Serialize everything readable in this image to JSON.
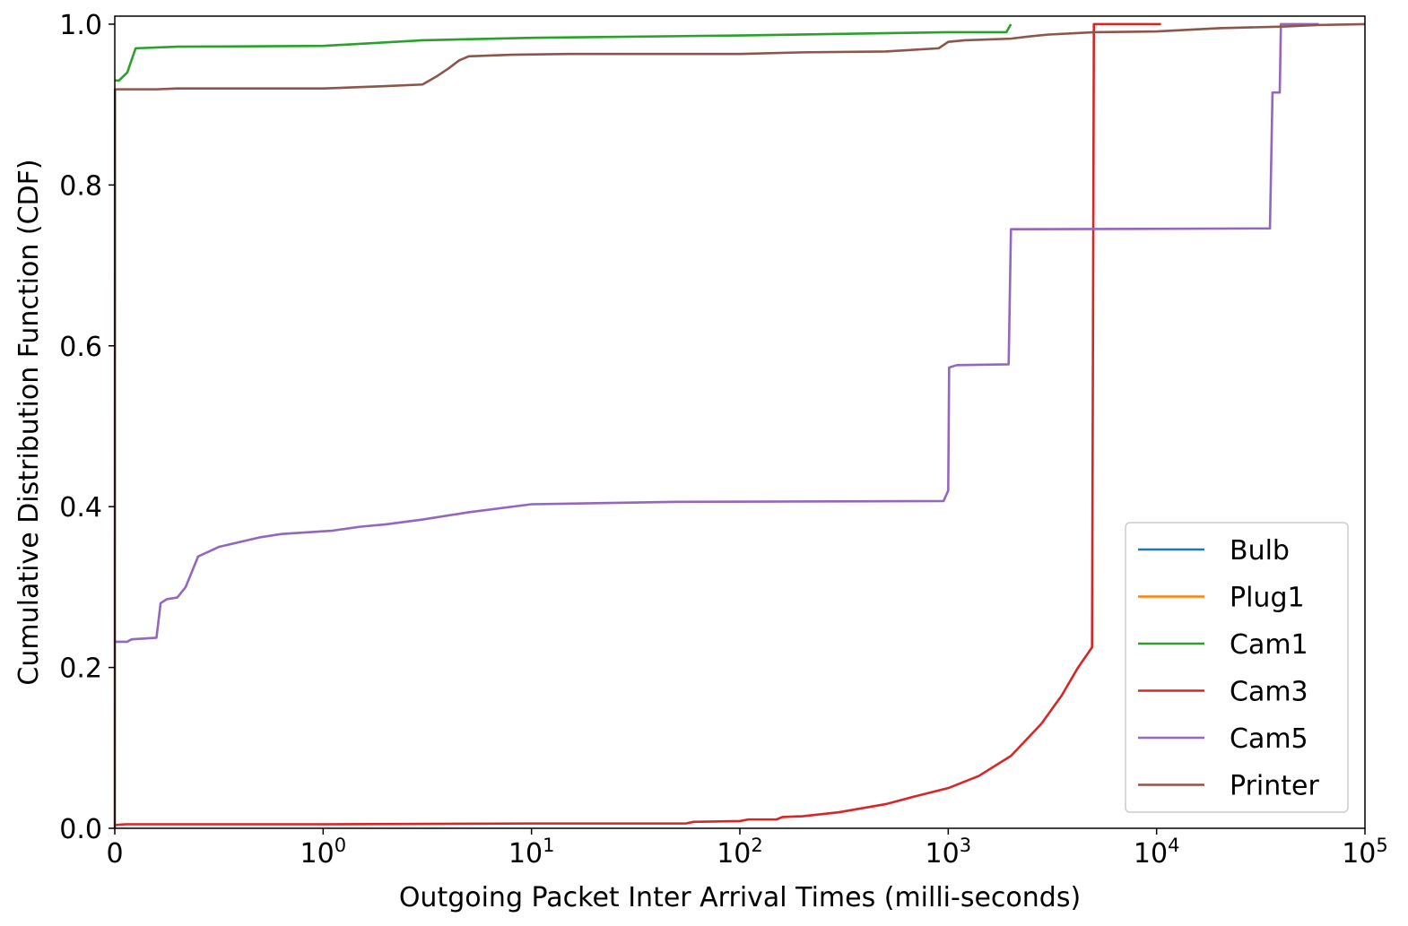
{
  "chart_data": {
    "type": "line",
    "title": "",
    "xlabel": "Outgoing Packet Inter Arrival Times (milli-seconds)",
    "ylabel": "Cumulative Distribution Function (CDF)",
    "x_scale": "symlog",
    "x_linthresh": 1,
    "xlim": [
      0,
      100000
    ],
    "ylim": [
      0,
      1.01
    ],
    "x_ticks": [
      {
        "value": 0,
        "label": "0"
      },
      {
        "value": 1,
        "label": "10",
        "exp": "0"
      },
      {
        "value": 10,
        "label": "10",
        "exp": "1"
      },
      {
        "value": 100,
        "label": "10",
        "exp": "2"
      },
      {
        "value": 1000,
        "label": "10",
        "exp": "3"
      },
      {
        "value": 10000,
        "label": "10",
        "exp": "4"
      },
      {
        "value": 100000,
        "label": "10",
        "exp": "5"
      }
    ],
    "y_ticks": [
      "0.0",
      "0.2",
      "0.4",
      "0.6",
      "0.8",
      "1.0"
    ],
    "grid": false,
    "legend_position": "lower right",
    "series": [
      {
        "name": "Bulb",
        "color": "#1f77b4",
        "points": []
      },
      {
        "name": "Plug1",
        "color": "#ff7f0e",
        "points": []
      },
      {
        "name": "Cam1",
        "color": "#2ca02c",
        "points": [
          [
            0,
            0.93
          ],
          [
            0.02,
            0.93
          ],
          [
            0.06,
            0.94
          ],
          [
            0.08,
            0.955
          ],
          [
            0.1,
            0.97
          ],
          [
            0.3,
            0.972
          ],
          [
            1,
            0.973
          ],
          [
            3,
            0.98
          ],
          [
            10,
            0.983
          ],
          [
            100,
            0.986
          ],
          [
            1000,
            0.99
          ],
          [
            1900,
            0.99
          ],
          [
            2000,
            1.0
          ]
        ]
      },
      {
        "name": "Cam3",
        "color": "#d62728",
        "points": [
          [
            0,
            0.004
          ],
          [
            0.05,
            0.005
          ],
          [
            1,
            0.005
          ],
          [
            10,
            0.006
          ],
          [
            55,
            0.006
          ],
          [
            60,
            0.008
          ],
          [
            100,
            0.009
          ],
          [
            110,
            0.011
          ],
          [
            150,
            0.011
          ],
          [
            160,
            0.014
          ],
          [
            200,
            0.015
          ],
          [
            300,
            0.02
          ],
          [
            500,
            0.03
          ],
          [
            700,
            0.04
          ],
          [
            1000,
            0.05
          ],
          [
            1400,
            0.065
          ],
          [
            2000,
            0.09
          ],
          [
            2800,
            0.13
          ],
          [
            3500,
            0.165
          ],
          [
            4200,
            0.2
          ],
          [
            4900,
            0.225
          ],
          [
            4950,
            0.6
          ],
          [
            5000,
            1.0
          ],
          [
            10500,
            1.0
          ]
        ]
      },
      {
        "name": "Cam5",
        "color": "#9467bd",
        "points": [
          [
            0,
            0.232
          ],
          [
            0.06,
            0.232
          ],
          [
            0.08,
            0.235
          ],
          [
            0.2,
            0.237
          ],
          [
            0.22,
            0.28
          ],
          [
            0.25,
            0.285
          ],
          [
            0.3,
            0.287
          ],
          [
            0.34,
            0.3
          ],
          [
            0.4,
            0.338
          ],
          [
            0.5,
            0.35
          ],
          [
            0.6,
            0.356
          ],
          [
            0.7,
            0.362
          ],
          [
            0.8,
            0.366
          ],
          [
            1.1,
            0.37
          ],
          [
            1.5,
            0.375
          ],
          [
            2,
            0.378
          ],
          [
            3,
            0.384
          ],
          [
            5,
            0.393
          ],
          [
            10,
            0.403
          ],
          [
            50,
            0.406
          ],
          [
            950,
            0.407
          ],
          [
            1000,
            0.42
          ],
          [
            1010,
            0.573
          ],
          [
            1100,
            0.576
          ],
          [
            1950,
            0.577
          ],
          [
            2000,
            0.745
          ],
          [
            35000,
            0.746
          ],
          [
            36000,
            0.915
          ],
          [
            39000,
            0.915
          ],
          [
            39500,
            1.0
          ],
          [
            60000,
            1.0
          ]
        ]
      },
      {
        "name": "Printer",
        "color": "#8c564b",
        "points": [
          [
            0,
            0.0
          ],
          [
            0.001,
            0.919
          ],
          [
            0.2,
            0.919
          ],
          [
            0.3,
            0.92
          ],
          [
            1,
            0.92
          ],
          [
            2,
            0.923
          ],
          [
            3,
            0.925
          ],
          [
            3.5,
            0.935
          ],
          [
            4,
            0.945
          ],
          [
            4.5,
            0.955
          ],
          [
            5,
            0.96
          ],
          [
            8,
            0.962
          ],
          [
            15,
            0.963
          ],
          [
            100,
            0.963
          ],
          [
            200,
            0.965
          ],
          [
            500,
            0.966
          ],
          [
            900,
            0.97
          ],
          [
            1000,
            0.978
          ],
          [
            1200,
            0.98
          ],
          [
            2000,
            0.982
          ],
          [
            2500,
            0.985
          ],
          [
            3000,
            0.987
          ],
          [
            5000,
            0.99
          ],
          [
            10000,
            0.991
          ],
          [
            20000,
            0.995
          ],
          [
            40000,
            0.997
          ],
          [
            60000,
            0.999
          ],
          [
            100000,
            1.0
          ]
        ]
      }
    ]
  }
}
